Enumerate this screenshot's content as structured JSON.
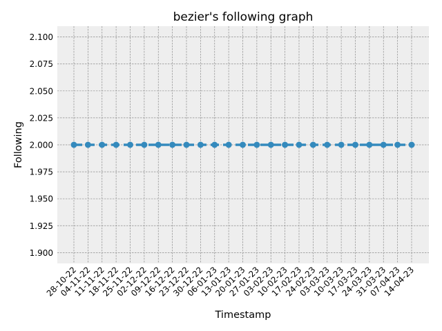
{
  "chart_data": {
    "type": "line",
    "title": "bezier's following graph",
    "xlabel": "Timestamp",
    "ylabel": "Following",
    "ylim": [
      1.89,
      2.11
    ],
    "yticks": [
      "1.900",
      "1.925",
      "1.950",
      "1.975",
      "2.000",
      "2.025",
      "2.050",
      "2.075",
      "2.100"
    ],
    "ytick_values": [
      1.9,
      1.925,
      1.95,
      1.975,
      2.0,
      2.025,
      2.05,
      2.075,
      2.1
    ],
    "categories": [
      "28-10-22",
      "04-11-22",
      "11-11-22",
      "18-11-22",
      "25-11-22",
      "02-12-22",
      "09-12-22",
      "16-12-22",
      "23-12-22",
      "30-12-22",
      "06-01-23",
      "13-01-23",
      "20-01-23",
      "27-01-23",
      "03-02-23",
      "10-02-23",
      "17-02-23",
      "24-02-23",
      "03-03-23",
      "10-03-23",
      "17-03-23",
      "24-03-23",
      "31-03-23",
      "07-04-23",
      "14-04-23"
    ],
    "series": [
      {
        "values": [
          2,
          2,
          2,
          2,
          2,
          2,
          2,
          2,
          2,
          2,
          2,
          2,
          2,
          2,
          2,
          2,
          2,
          2,
          2,
          2,
          2,
          2,
          2,
          2,
          2
        ],
        "color": "#348abd",
        "line_style": "dashed",
        "marker": "circle"
      }
    ],
    "grid": true,
    "plot_background": "#eeeeee"
  }
}
